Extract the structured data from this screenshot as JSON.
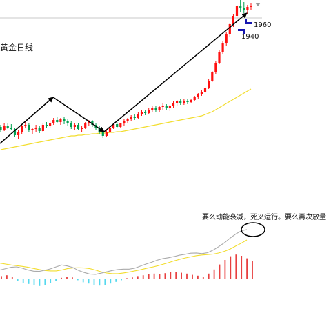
{
  "chart_data": {
    "type": "candlestick",
    "title": "黄金日线",
    "price_labels": [
      "1960",
      "1940"
    ],
    "candles": [
      [
        1781,
        1784,
        1774,
        1777
      ],
      [
        1777,
        1786,
        1775,
        1783
      ],
      [
        1783,
        1786,
        1778,
        1780
      ],
      [
        1780,
        1785,
        1776,
        1778
      ],
      [
        1778,
        1780,
        1766,
        1769
      ],
      [
        1769,
        1776,
        1764,
        1773
      ],
      [
        1773,
        1784,
        1771,
        1782
      ],
      [
        1782,
        1788,
        1779,
        1784
      ],
      [
        1784,
        1786,
        1774,
        1776
      ],
      [
        1776,
        1780,
        1770,
        1778
      ],
      [
        1778,
        1784,
        1774,
        1780
      ],
      [
        1780,
        1782,
        1772,
        1775
      ],
      [
        1775,
        1786,
        1773,
        1784
      ],
      [
        1784,
        1788,
        1779,
        1782
      ],
      [
        1782,
        1790,
        1779,
        1787
      ],
      [
        1787,
        1794,
        1784,
        1791
      ],
      [
        1791,
        1796,
        1786,
        1788
      ],
      [
        1788,
        1794,
        1784,
        1792
      ],
      [
        1792,
        1795,
        1785,
        1789
      ],
      [
        1789,
        1792,
        1783,
        1786
      ],
      [
        1786,
        1789,
        1778,
        1781
      ],
      [
        1781,
        1786,
        1777,
        1784
      ],
      [
        1784,
        1786,
        1776,
        1778
      ],
      [
        1778,
        1783,
        1773,
        1780
      ],
      [
        1780,
        1788,
        1778,
        1786
      ],
      [
        1786,
        1791,
        1783,
        1789
      ],
      [
        1789,
        1791,
        1781,
        1784
      ],
      [
        1784,
        1787,
        1776,
        1779
      ],
      [
        1779,
        1783,
        1771,
        1773
      ],
      [
        1773,
        1777,
        1765,
        1768
      ],
      [
        1768,
        1776,
        1766,
        1774
      ],
      [
        1774,
        1782,
        1772,
        1780
      ],
      [
        1780,
        1787,
        1778,
        1785
      ],
      [
        1785,
        1788,
        1779,
        1781
      ],
      [
        1781,
        1787,
        1779,
        1786
      ],
      [
        1786,
        1792,
        1783,
        1790
      ],
      [
        1790,
        1794,
        1786,
        1792
      ],
      [
        1792,
        1798,
        1789,
        1796
      ],
      [
        1796,
        1800,
        1791,
        1794
      ],
      [
        1794,
        1802,
        1792,
        1800
      ],
      [
        1800,
        1806,
        1797,
        1803
      ],
      [
        1803,
        1806,
        1798,
        1801
      ],
      [
        1801,
        1808,
        1799,
        1806
      ],
      [
        1806,
        1811,
        1803,
        1808
      ],
      [
        1808,
        1811,
        1802,
        1805
      ],
      [
        1805,
        1812,
        1803,
        1810
      ],
      [
        1810,
        1815,
        1806,
        1812
      ],
      [
        1812,
        1814,
        1806,
        1809
      ],
      [
        1809,
        1813,
        1804,
        1811
      ],
      [
        1811,
        1818,
        1809,
        1816
      ],
      [
        1816,
        1820,
        1812,
        1818
      ],
      [
        1818,
        1821,
        1813,
        1815
      ],
      [
        1815,
        1821,
        1813,
        1819
      ],
      [
        1819,
        1822,
        1814,
        1817
      ],
      [
        1817,
        1822,
        1815,
        1820
      ],
      [
        1820,
        1826,
        1818,
        1824
      ],
      [
        1824,
        1830,
        1822,
        1828
      ],
      [
        1828,
        1834,
        1826,
        1832
      ],
      [
        1832,
        1840,
        1830,
        1838
      ],
      [
        1838,
        1850,
        1836,
        1848
      ],
      [
        1848,
        1862,
        1846,
        1860
      ],
      [
        1860,
        1876,
        1858,
        1874
      ],
      [
        1874,
        1892,
        1872,
        1890
      ],
      [
        1890,
        1905,
        1886,
        1902
      ],
      [
        1902,
        1918,
        1898,
        1915
      ],
      [
        1915,
        1932,
        1912,
        1930
      ],
      [
        1930,
        1944,
        1926,
        1942
      ],
      [
        1942,
        1958,
        1938,
        1956
      ],
      [
        1956,
        1966,
        1948,
        1953
      ],
      [
        1953,
        1962,
        1946,
        1950
      ],
      [
        1950,
        1958,
        1944,
        1955
      ],
      [
        1955,
        1960,
        1950,
        1957
      ]
    ],
    "moving_average": [
      1748,
      1749,
      1750,
      1751,
      1752,
      1753,
      1754,
      1755,
      1756,
      1757,
      1758,
      1759,
      1760,
      1761,
      1762,
      1763,
      1764,
      1765,
      1766,
      1767,
      1768,
      1768,
      1769,
      1769,
      1770,
      1770,
      1771,
      1771,
      1772,
      1772,
      1772,
      1773,
      1773,
      1774,
      1774,
      1775,
      1776,
      1777,
      1778,
      1779,
      1780,
      1781,
      1782,
      1783,
      1784,
      1785,
      1786,
      1787,
      1788,
      1789,
      1790,
      1791,
      1792,
      1793,
      1794,
      1795,
      1796,
      1797,
      1799,
      1801,
      1803,
      1806,
      1809,
      1812,
      1815,
      1818,
      1821,
      1824,
      1827,
      1830,
      1833,
      1836
    ],
    "macd": {
      "histogram": [
        0.6,
        0.8,
        0.4,
        -0.6,
        -1.0,
        -1.3,
        -1.6,
        -1.8,
        -1.5,
        -1.1,
        -0.6,
        0.2,
        0.5,
        0.3,
        -0.4,
        -0.9,
        -1.2,
        -1.5,
        -1.7,
        -1.6,
        -1.2,
        -0.8,
        -0.4,
        0.1,
        0.3,
        0.6,
        0.8,
        1.0,
        1.2,
        1.1,
        1.3,
        1.5,
        1.6,
        1.4,
        1.2,
        0.9,
        0.7,
        0.5,
        1.2,
        2.2,
        3.4,
        4.5,
        5.4,
        5.8,
        5.5,
        4.9,
        4.2
      ],
      "diff": [
        -2,
        -1.4,
        -0.8,
        -0.6,
        -1.2,
        -2,
        -2.5,
        -2.6,
        -2.1,
        -1.5,
        -0.6,
        0.2,
        -0.2,
        -0.9,
        -2.2,
        -3.1,
        -3.8,
        -3.9,
        -3.4,
        -2.8,
        -2.2,
        -1.8,
        -1.6,
        -1.6,
        -1.2,
        -0.3,
        0.6,
        1.4,
        2.3,
        3.0,
        3.4,
        3.9,
        4.5,
        4.9,
        5.4,
        5.5,
        5.2,
        5.6,
        6.8,
        8.3,
        10,
        12,
        13.8,
        15.2,
        15.8
      ],
      "dea": [
        1,
        0.6,
        0.2,
        -0.1,
        -0.4,
        -0.8,
        -1.3,
        -1.8,
        -2.2,
        -2.4,
        -2.4,
        -2.0,
        -1.4,
        -1.1,
        -1.0,
        -1.1,
        -1.4,
        -2.0,
        -2.8,
        -3.3,
        -3.6,
        -3.6,
        -3.3,
        -2.9,
        -2.4,
        -1.9,
        -1.3,
        -0.8,
        -0.2,
        0.5,
        1.2,
        2.0,
        2.7,
        3.3,
        3.8,
        4.3,
        4.6,
        4.8,
        5.0,
        5.5,
        6.2,
        7.2,
        8.5,
        9.8,
        11.2
      ]
    },
    "annotation": "要么动能衰减，死叉运行。要么再次放量",
    "colors": {
      "up": "#ff1010",
      "down": "#00a050",
      "ma": "#f2dd2e",
      "hist_pos": "#e84040",
      "hist_neg": "#55d8ee",
      "diff": "#aaaaaa",
      "dea": "#f2dd2e",
      "trend": "#000000",
      "marker": "#1515b0"
    }
  }
}
